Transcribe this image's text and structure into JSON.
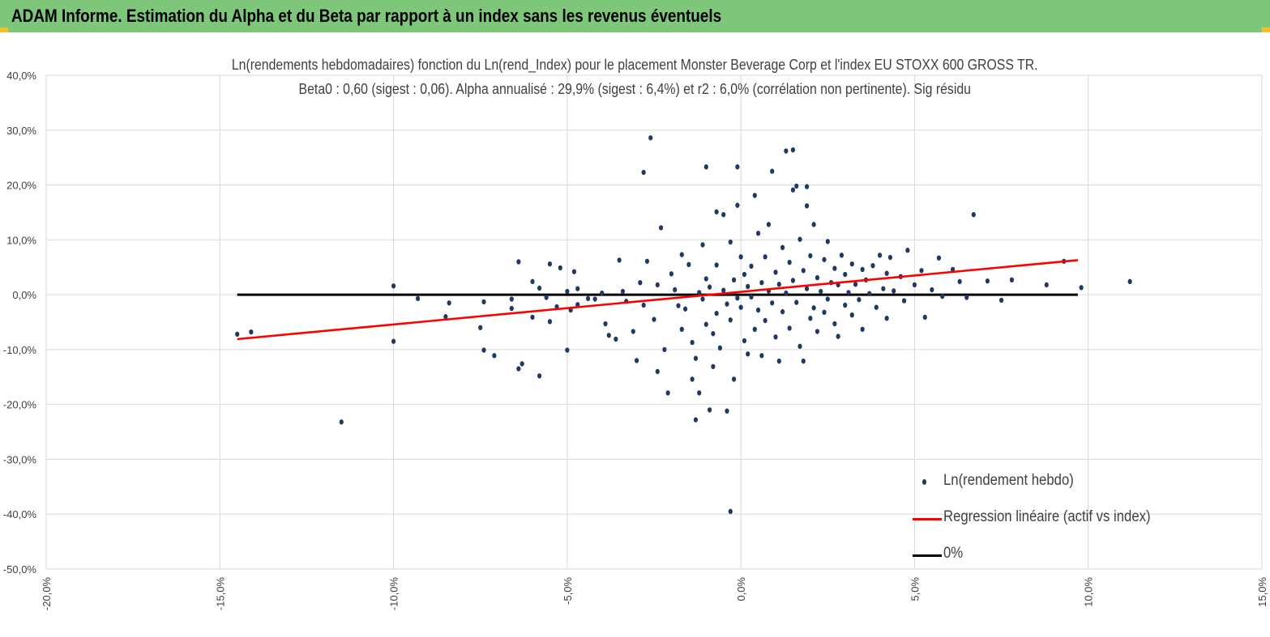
{
  "header": {
    "title": "ADAM Informe. Estimation du Alpha et du Beta par rapport à un index sans les revenus éventuels"
  },
  "colors": {
    "header_bg": "#7dc67a",
    "corner": "#f4c025",
    "scatter": "#203864",
    "regression": "#ff0000",
    "zero_line": "#000000",
    "grid": "#d9d9d9"
  },
  "chart_data": {
    "type": "scatter",
    "title_line1": "Ln(rendements hebdomadaires) fonction du Ln(rend_Index) pour le placement Monster Beverage Corp et l'index EU STOXX 600 GROSS TR.",
    "title_line2": "Beta0 : 0,60 (sigest : 0,06). Alpha annualisé : 29,9% (sigest : 6,4%) et r2 : 6,0% (corrélation non pertinente). Sig résidu",
    "xlim": [
      -0.2,
      0.15
    ],
    "ylim": [
      -0.5,
      0.4
    ],
    "x_ticks": [
      -0.2,
      -0.15,
      -0.1,
      -0.05,
      0.0,
      0.05,
      0.1,
      0.15
    ],
    "x_tick_labels": [
      "-20,0%",
      "-15,0%",
      "-10,0%",
      "-5,0%",
      "0,0%",
      "5,0%",
      "10,0%",
      "15,0%"
    ],
    "y_ticks": [
      0.4,
      0.3,
      0.2,
      0.1,
      0.0,
      -0.1,
      -0.2,
      -0.3,
      -0.4,
      -0.5
    ],
    "y_tick_labels": [
      "40,0%",
      "30,0%",
      "20,0%",
      "10,0%",
      "0,0%",
      "-10,0%",
      "-20,0%",
      "-30,0%",
      "-40,0%",
      "-50,0%"
    ],
    "grid": true,
    "legend_position": "bottom-right",
    "series": [
      {
        "name": "Ln(rendement hebdo)",
        "kind": "scatter",
        "points": [
          [
            -0.145,
            -0.072
          ],
          [
            -0.141,
            -0.068
          ],
          [
            -0.115,
            -0.232
          ],
          [
            -0.1,
            0.016
          ],
          [
            -0.1,
            -0.085
          ],
          [
            -0.093,
            -0.007
          ],
          [
            -0.085,
            -0.04
          ],
          [
            -0.084,
            -0.015
          ],
          [
            -0.075,
            -0.06
          ],
          [
            -0.074,
            -0.101
          ],
          [
            -0.074,
            -0.013
          ],
          [
            -0.071,
            -0.111
          ],
          [
            -0.066,
            -0.025
          ],
          [
            -0.066,
            -0.008
          ],
          [
            -0.064,
            0.06
          ],
          [
            -0.064,
            -0.135
          ],
          [
            -0.063,
            -0.126
          ],
          [
            -0.06,
            0.024
          ],
          [
            -0.06,
            -0.041
          ],
          [
            -0.058,
            -0.148
          ],
          [
            -0.058,
            0.012
          ],
          [
            -0.056,
            -0.005
          ],
          [
            -0.055,
            0.056
          ],
          [
            -0.055,
            -0.049
          ],
          [
            -0.053,
            -0.022
          ],
          [
            -0.052,
            0.049
          ],
          [
            -0.05,
            0.006
          ],
          [
            -0.049,
            -0.028
          ],
          [
            -0.048,
            0.042
          ],
          [
            -0.047,
            0.011
          ],
          [
            -0.05,
            -0.101
          ],
          [
            -0.047,
            -0.018
          ],
          [
            -0.044,
            -0.007
          ],
          [
            -0.042,
            -0.008
          ],
          [
            -0.04,
            0.003
          ],
          [
            -0.039,
            -0.053
          ],
          [
            -0.038,
            -0.074
          ],
          [
            -0.036,
            -0.081
          ],
          [
            -0.035,
            0.063
          ],
          [
            -0.034,
            0.006
          ],
          [
            -0.033,
            -0.012
          ],
          [
            -0.031,
            -0.067
          ],
          [
            -0.03,
            -0.12
          ],
          [
            -0.029,
            0.022
          ],
          [
            -0.028,
            -0.019
          ],
          [
            -0.027,
            0.061
          ],
          [
            -0.025,
            -0.045
          ],
          [
            -0.024,
            0.018
          ],
          [
            -0.024,
            -0.14
          ],
          [
            -0.023,
            0.122
          ],
          [
            -0.022,
            -0.1
          ],
          [
            -0.021,
            -0.179
          ],
          [
            -0.02,
            0.038
          ],
          [
            -0.019,
            0.009
          ],
          [
            -0.018,
            -0.02
          ],
          [
            -0.017,
            0.073
          ],
          [
            -0.017,
            -0.063
          ],
          [
            -0.016,
            -0.026
          ],
          [
            -0.015,
            0.055
          ],
          [
            -0.014,
            -0.087
          ],
          [
            -0.014,
            -0.154
          ],
          [
            -0.013,
            -0.116
          ],
          [
            -0.013,
            -0.228
          ],
          [
            -0.012,
            0.004
          ],
          [
            -0.012,
            -0.179
          ],
          [
            -0.011,
            0.091
          ],
          [
            -0.011,
            -0.008
          ],
          [
            -0.01,
            0.029
          ],
          [
            -0.01,
            -0.054
          ],
          [
            -0.009,
            0.014
          ],
          [
            -0.008,
            -0.071
          ],
          [
            -0.008,
            -0.131
          ],
          [
            -0.007,
            0.054
          ],
          [
            -0.007,
            -0.034
          ],
          [
            -0.006,
            -0.097
          ],
          [
            -0.005,
            0.146
          ],
          [
            -0.005,
            0.008
          ],
          [
            -0.004,
            -0.017
          ],
          [
            -0.004,
            -0.212
          ],
          [
            -0.003,
            0.096
          ],
          [
            -0.003,
            -0.046
          ],
          [
            -0.002,
            0.027
          ],
          [
            -0.002,
            -0.154
          ],
          [
            -0.001,
            0.233
          ],
          [
            -0.001,
            0.163
          ],
          [
            -0.001,
            -0.006
          ],
          [
            0.0,
            0.069
          ],
          [
            0.0,
            -0.023
          ],
          [
            0.001,
            0.037
          ],
          [
            0.001,
            -0.084
          ],
          [
            0.002,
            0.015
          ],
          [
            0.002,
            -0.108
          ],
          [
            0.003,
            -0.004
          ],
          [
            0.003,
            0.052
          ],
          [
            0.004,
            -0.063
          ],
          [
            0.004,
            0.181
          ],
          [
            0.005,
            0.112
          ],
          [
            0.005,
            -0.028
          ],
          [
            0.006,
            0.022
          ],
          [
            0.006,
            -0.111
          ],
          [
            0.007,
            0.069
          ],
          [
            0.007,
            -0.047
          ],
          [
            0.008,
            0.007
          ],
          [
            0.008,
            0.128
          ],
          [
            0.009,
            -0.015
          ],
          [
            0.009,
            0.225
          ],
          [
            0.01,
            0.041
          ],
          [
            0.01,
            -0.077
          ],
          [
            0.011,
            0.019
          ],
          [
            0.011,
            -0.121
          ],
          [
            0.012,
            0.086
          ],
          [
            0.012,
            -0.031
          ],
          [
            0.013,
            0.262
          ],
          [
            0.013,
            0.003
          ],
          [
            0.014,
            0.059
          ],
          [
            0.014,
            -0.061
          ],
          [
            0.015,
            0.191
          ],
          [
            0.015,
            0.026
          ],
          [
            0.016,
            -0.014
          ],
          [
            0.016,
            0.198
          ],
          [
            0.017,
            0.101
          ],
          [
            0.017,
            -0.094
          ],
          [
            0.018,
            0.044
          ],
          [
            0.018,
            -0.121
          ],
          [
            0.019,
            0.011
          ],
          [
            0.019,
            0.162
          ],
          [
            0.02,
            -0.043
          ],
          [
            0.02,
            0.071
          ],
          [
            0.021,
            -0.024
          ],
          [
            0.021,
            0.128
          ],
          [
            0.022,
            0.031
          ],
          [
            0.022,
            -0.067
          ],
          [
            0.023,
            0.006
          ],
          [
            0.024,
            0.064
          ],
          [
            0.024,
            -0.032
          ],
          [
            0.025,
            0.097
          ],
          [
            0.025,
            -0.008
          ],
          [
            0.026,
            0.022
          ],
          [
            0.027,
            -0.053
          ],
          [
            0.027,
            0.048
          ],
          [
            0.028,
            -0.076
          ],
          [
            0.028,
            0.018
          ],
          [
            0.029,
            0.072
          ],
          [
            0.03,
            -0.019
          ],
          [
            0.03,
            0.037
          ],
          [
            0.031,
            0.004
          ],
          [
            0.032,
            -0.037
          ],
          [
            0.032,
            0.056
          ],
          [
            0.033,
            0.019
          ],
          [
            0.034,
            -0.009
          ],
          [
            0.035,
            0.046
          ],
          [
            0.035,
            -0.063
          ],
          [
            0.036,
            0.027
          ],
          [
            0.037,
            0.002
          ],
          [
            0.038,
            0.053
          ],
          [
            0.039,
            -0.023
          ],
          [
            0.04,
            0.072
          ],
          [
            0.041,
            0.011
          ],
          [
            0.042,
            0.039
          ],
          [
            0.042,
            -0.043
          ],
          [
            0.043,
            0.068
          ],
          [
            0.044,
            0.007
          ],
          [
            0.046,
            0.033
          ],
          [
            0.047,
            -0.011
          ],
          [
            0.048,
            0.081
          ],
          [
            0.05,
            0.018
          ],
          [
            0.052,
            0.044
          ],
          [
            0.053,
            -0.041
          ],
          [
            0.055,
            0.009
          ],
          [
            0.057,
            0.067
          ],
          [
            0.058,
            -0.003
          ],
          [
            0.061,
            0.046
          ],
          [
            0.063,
            0.024
          ],
          [
            0.065,
            -0.005
          ],
          [
            0.067,
            0.146
          ],
          [
            0.071,
            0.025
          ],
          [
            0.075,
            -0.01
          ],
          [
            0.078,
            0.027
          ],
          [
            0.088,
            0.018
          ],
          [
            0.093,
            0.061
          ],
          [
            0.098,
            0.013
          ],
          [
            0.112,
            0.024
          ],
          [
            -0.026,
            0.286
          ],
          [
            -0.028,
            0.223
          ],
          [
            -0.01,
            0.233
          ],
          [
            -0.003,
            -0.395
          ],
          [
            0.015,
            0.264
          ],
          [
            0.019,
            0.197
          ],
          [
            -0.007,
            0.151
          ],
          [
            -0.009,
            -0.21
          ]
        ]
      },
      {
        "name": "Regression linéaire (actif vs index)",
        "kind": "line",
        "x": [
          -0.145,
          0.097
        ],
        "y": [
          -0.081,
          0.063
        ]
      },
      {
        "name": "0%",
        "kind": "line",
        "x": [
          -0.145,
          0.097
        ],
        "y": [
          0.0,
          0.0
        ]
      }
    ]
  }
}
